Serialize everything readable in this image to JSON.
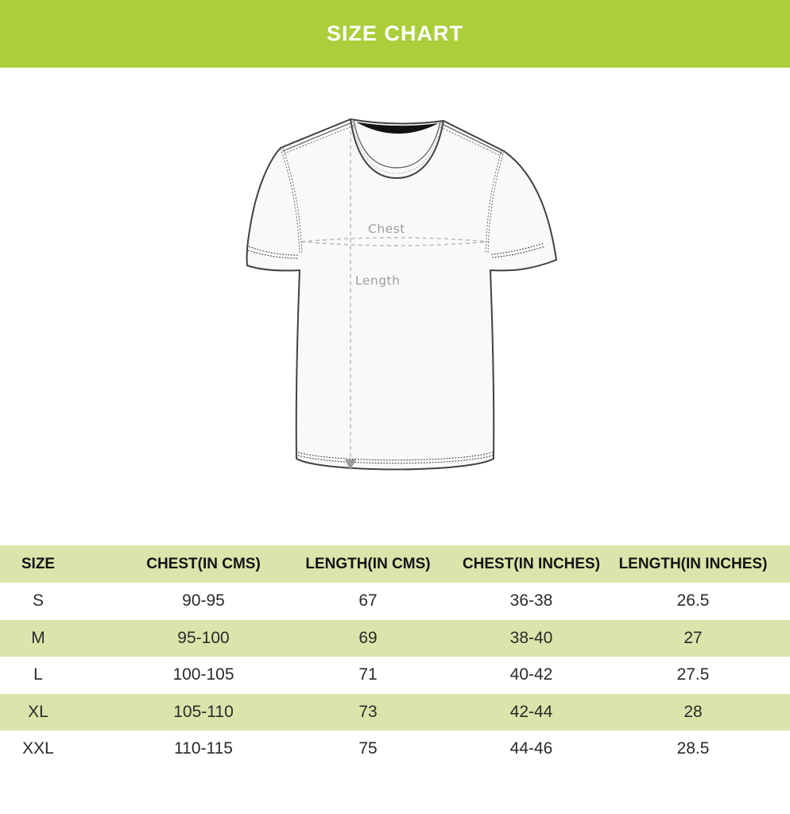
{
  "banner": {
    "title": "SIZE CHART"
  },
  "diagram": {
    "chest_label": "Chest",
    "length_label": "Length"
  },
  "table": {
    "headers": [
      "SIZE",
      "CHEST(IN CMS)",
      "LENGTH(IN CMS)",
      "CHEST(IN INCHES)",
      "LENGTH(IN INCHES)"
    ],
    "rows": [
      {
        "size": "S",
        "chest_cms": "90-95",
        "length_cms": "67",
        "chest_inches": "36-38",
        "length_inches": "26.5"
      },
      {
        "size": "M",
        "chest_cms": "95-100",
        "length_cms": "69",
        "chest_inches": "38-40",
        "length_inches": "27"
      },
      {
        "size": "L",
        "chest_cms": "100-105",
        "length_cms": "71",
        "chest_inches": "40-42",
        "length_inches": "27.5"
      },
      {
        "size": "XL",
        "chest_cms": "105-110",
        "length_cms": "73",
        "chest_inches": "42-44",
        "length_inches": "28"
      },
      {
        "size": "XXL",
        "chest_cms": "110-115",
        "length_cms": "75",
        "chest_inches": "44-46",
        "length_inches": "28.5"
      }
    ]
  },
  "colors": {
    "banner_green": "#abce3b",
    "banner_text": "#ffffff",
    "stripe_green": "#dae5ab",
    "outline": "#414141",
    "measure": "#b6b6b6",
    "label_gray": "#9e9e9e"
  }
}
